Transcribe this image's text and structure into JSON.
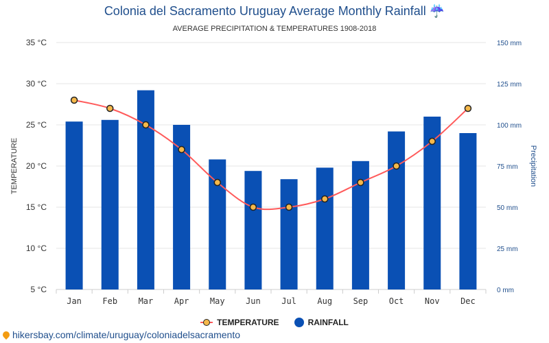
{
  "title": "Colonia del Sacramento Uruguay Average Monthly Rainfall",
  "title_icon": "umbrella-rain-icon",
  "subtitle": "AVERAGE PRECIPITATION & TEMPERATURES 1908-2018",
  "legend": {
    "temperature_label": "TEMPERATURE",
    "rainfall_label": "RAINFALL"
  },
  "source": {
    "icon": "location-pin-icon",
    "text": "hikersbay.com/climate/uruguay/coloniadelsacramento"
  },
  "colors": {
    "bar": "#0a50b4",
    "temperature_line": "#ff5a5a",
    "temperature_marker": "#f5b84a",
    "title": "#1f4e8c"
  },
  "chart_data": {
    "type": "bar",
    "categories": [
      "Jan",
      "Feb",
      "Mar",
      "Apr",
      "May",
      "Jun",
      "Jul",
      "Aug",
      "Sep",
      "Oct",
      "Nov",
      "Dec"
    ],
    "series": [
      {
        "name": "RAINFALL",
        "type": "bar",
        "axis": "right",
        "values": [
          102,
          103,
          121,
          100,
          79,
          72,
          67,
          74,
          78,
          96,
          105,
          95
        ]
      },
      {
        "name": "TEMPERATURE",
        "type": "line",
        "axis": "left",
        "values": [
          28,
          27,
          25,
          22,
          18,
          15,
          15,
          16,
          18,
          20,
          23,
          27
        ]
      }
    ],
    "ylabel_left": "TEMPERATURE",
    "ylabel_right": "Precipitation",
    "ylim_left": [
      5,
      35
    ],
    "ylim_right": [
      0,
      150
    ],
    "yticks_left": [
      "5 °C",
      "10 °C",
      "15 °C",
      "20 °C",
      "25 °C",
      "30 °C",
      "35 °C"
    ],
    "yticks_right": [
      "0 mm",
      "25 mm",
      "50 mm",
      "75 mm",
      "100 mm",
      "125 mm",
      "150 mm"
    ],
    "grid": true,
    "legend_position": "bottom"
  }
}
